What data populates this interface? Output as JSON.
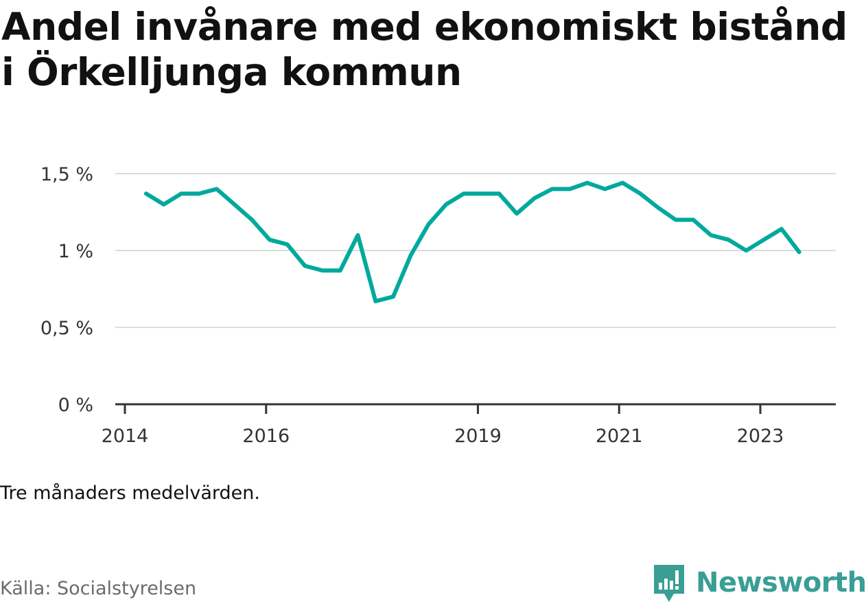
{
  "title": "Andel invånare med ekonomiskt bistånd i Örkelljunga kommun",
  "note": "Tre månaders medelvärden.",
  "source": "Källa: Socialstyrelsen",
  "brand": {
    "name": "Newsworthy",
    "color": "#3a9e94",
    "icon": "newsworthy-logo-icon"
  },
  "chart_data": {
    "type": "line",
    "title": "Andel invånare med ekonomiskt bistånd i Örkelljunga kommun",
    "xlabel": "",
    "ylabel": "",
    "ylim": [
      0,
      1.5
    ],
    "yticks": [
      {
        "value": 0,
        "label": "0 %"
      },
      {
        "value": 0.5,
        "label": "0,5 %"
      },
      {
        "value": 1,
        "label": "1 %"
      },
      {
        "value": 1.5,
        "label": "1,5 %"
      }
    ],
    "xlim": [
      2014,
      2024.05
    ],
    "xticks": [
      {
        "value": 2014,
        "label": "2014"
      },
      {
        "value": 2016,
        "label": "2016"
      },
      {
        "value": 2019,
        "label": "2019"
      },
      {
        "value": 2021,
        "label": "2021"
      },
      {
        "value": 2023,
        "label": "2023"
      }
    ],
    "grid": true,
    "line_color": "#00a99d",
    "series": [
      {
        "x": [
          2014.3,
          2014.55,
          2014.8,
          2015.05,
          2015.3,
          2015.55,
          2015.8,
          2016.05,
          2016.3,
          2016.55,
          2016.8,
          2017.05,
          2017.3,
          2017.55,
          2017.8,
          2018.05,
          2018.3,
          2018.55,
          2018.8,
          2019.05,
          2019.3,
          2019.55,
          2019.8,
          2020.05,
          2020.3,
          2020.55,
          2020.8,
          2021.05,
          2021.3,
          2021.55,
          2021.8,
          2022.05,
          2022.3,
          2022.55,
          2022.8,
          2023.05,
          2023.3,
          2023.55
        ],
        "values": [
          1.37,
          1.3,
          1.37,
          1.37,
          1.4,
          1.3,
          1.2,
          1.07,
          1.04,
          0.9,
          0.87,
          0.87,
          1.1,
          0.67,
          0.7,
          0.97,
          1.17,
          1.3,
          1.37,
          1.37,
          1.37,
          1.24,
          1.34,
          1.4,
          1.4,
          1.44,
          1.4,
          1.44,
          1.37,
          1.28,
          1.2,
          1.2,
          1.1,
          1.07,
          1.0,
          1.07,
          1.14,
          0.99
        ]
      }
    ]
  }
}
